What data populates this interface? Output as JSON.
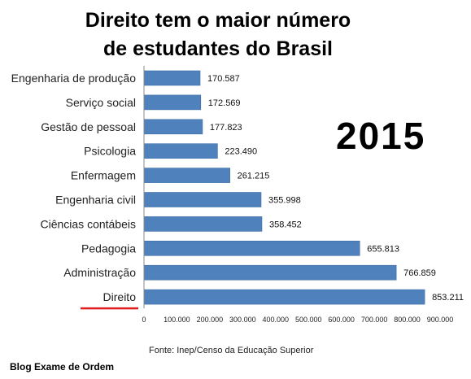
{
  "chart_data": {
    "type": "bar",
    "orientation": "horizontal",
    "title_lines": [
      "Direito tem o maior número",
      "de estudantes do Brasil"
    ],
    "categories": [
      "Engenharia de produção",
      "Serviço social",
      "Gestão de pessoal",
      "Psicologia",
      "Enfermagem",
      "Engenharia civil",
      "Ciências contábeis",
      "Pedagogia",
      "Administração",
      "Direito"
    ],
    "values": [
      170587,
      172569,
      177823,
      223490,
      261215,
      355998,
      358452,
      655813,
      766859,
      853211
    ],
    "value_labels": [
      "170.587",
      "172.569",
      "177.823",
      "223.490",
      "261.215",
      "355.998",
      "358.452",
      "655.813",
      "766.859",
      "853.211"
    ],
    "xlim": [
      0,
      900000
    ],
    "x_ticks": [
      0,
      100000,
      200000,
      300000,
      400000,
      500000,
      600000,
      700000,
      800000,
      900000
    ],
    "x_tick_labels": [
      "0",
      "100.000",
      "200.000",
      "300.000",
      "400.000",
      "500.000",
      "600.000",
      "700.000",
      "800.000",
      "900.000"
    ],
    "grid": false,
    "colors": {
      "bar": "#4f81bd",
      "bar_edge": "#3f6fa6",
      "highlight_underline": "#e02020"
    },
    "highlighted_category": "Direito"
  },
  "annotation": {
    "year": "2015"
  },
  "source": "Fonte: Inep/Censo da Educação Superior",
  "credit": "Blog Exame de Ordem"
}
